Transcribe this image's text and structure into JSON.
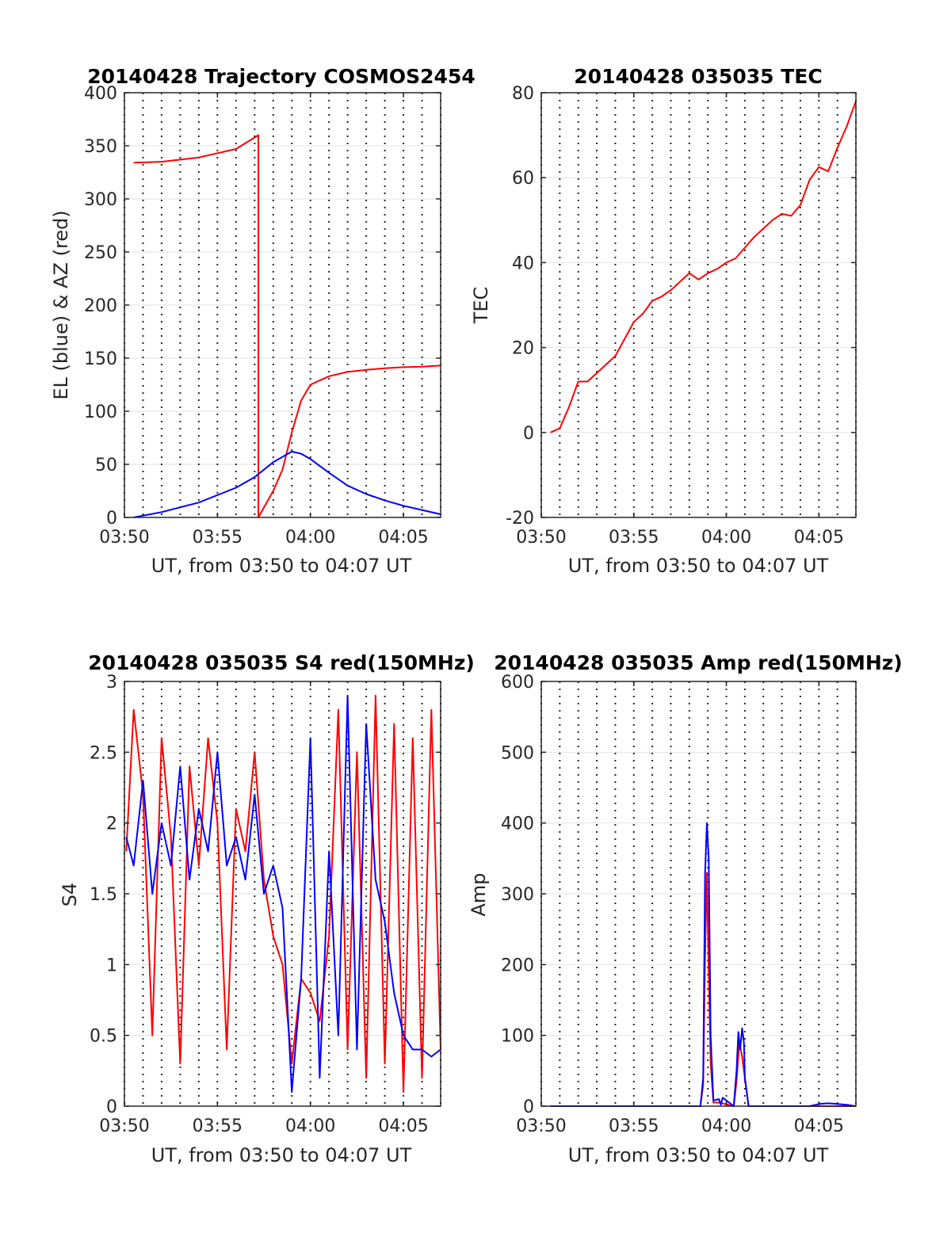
{
  "chart_data": [
    {
      "type": "line",
      "title": "20140428 Trajectory COSMOS2454",
      "xlabel": "UT, from 03:50 to 04:07 UT",
      "ylabel": "EL (blue) & AZ (red)",
      "xlim": [
        0,
        17
      ],
      "ylim": [
        0,
        400
      ],
      "xticks": [
        0,
        5,
        10,
        15
      ],
      "xtick_labels": [
        "03:50",
        "03:55",
        "04:00",
        "04:05"
      ],
      "yticks": [
        0,
        50,
        100,
        150,
        200,
        250,
        300,
        350,
        400
      ],
      "ytick_labels": [
        "0",
        "50",
        "100",
        "150",
        "200",
        "250",
        "300",
        "350",
        "400"
      ],
      "grid": true,
      "series": [
        {
          "color": "#ff0000",
          "x": [
            0.5,
            2,
            4,
            6,
            7.2,
            7.2,
            8,
            8.5,
            9,
            9.5,
            10,
            11,
            12,
            13,
            14,
            15,
            16,
            17
          ],
          "y": [
            334,
            335,
            339,
            347,
            360,
            0,
            25,
            45,
            80,
            110,
            125,
            133,
            137,
            139,
            140.5,
            141.5,
            142,
            143
          ]
        },
        {
          "color": "#0000ff",
          "x": [
            0.5,
            2,
            4,
            6,
            7,
            8,
            9,
            9.5,
            10,
            11,
            12,
            13,
            14,
            15,
            16,
            17
          ],
          "y": [
            0,
            5,
            14,
            28,
            38,
            52,
            62,
            60,
            55,
            42,
            30,
            22,
            16,
            11,
            7,
            3
          ]
        }
      ]
    },
    {
      "type": "line",
      "title": "20140428 035035 TEC",
      "xlabel": "UT, from 03:50 to 04:07 UT",
      "ylabel": "TEC",
      "xlim": [
        0,
        17
      ],
      "ylim": [
        -20,
        80
      ],
      "xticks": [
        0,
        5,
        10,
        15
      ],
      "xtick_labels": [
        "03:50",
        "03:55",
        "04:00",
        "04:05"
      ],
      "yticks": [
        -20,
        0,
        20,
        40,
        60,
        80
      ],
      "ytick_labels": [
        "-20",
        "0",
        "20",
        "40",
        "60",
        "80"
      ],
      "grid": true,
      "series": [
        {
          "color": "#ff0000",
          "x": [
            0.5,
            1,
            1.5,
            2,
            2.5,
            3,
            3.5,
            4,
            4.5,
            5,
            5.5,
            6,
            6.5,
            7,
            7.5,
            8,
            8.5,
            9,
            9.5,
            10,
            10.5,
            11,
            11.5,
            12,
            12.5,
            13,
            13.5,
            14,
            14.5,
            15,
            15.5,
            16,
            16.5,
            17
          ],
          "y": [
            0,
            1,
            6,
            12,
            12,
            14,
            16,
            18,
            22,
            26,
            28,
            31,
            32,
            33.5,
            35.5,
            37.5,
            36,
            37.5,
            38.5,
            40,
            41,
            43.5,
            46,
            48,
            50,
            51.5,
            51,
            53.5,
            59.5,
            62.5,
            61.5,
            67,
            72,
            78
          ]
        }
      ]
    },
    {
      "type": "line",
      "title": "20140428 035035 S4 red(150MHz)",
      "xlabel": "UT, from 03:50 to 04:07 UT",
      "ylabel": "S4",
      "xlim": [
        0,
        17
      ],
      "ylim": [
        0,
        3
      ],
      "xticks": [
        0,
        5,
        10,
        15
      ],
      "xtick_labels": [
        "03:50",
        "03:55",
        "04:00",
        "04:05"
      ],
      "yticks": [
        0,
        0.5,
        1,
        1.5,
        2,
        2.5,
        3
      ],
      "ytick_labels": [
        "0",
        "0.5",
        "1",
        "1.5",
        "2",
        "2.5",
        "3"
      ],
      "grid": true,
      "series": [
        {
          "color": "#ff0000",
          "x": [
            0.1,
            0.5,
            1,
            1.5,
            2,
            2.5,
            3,
            3.5,
            4,
            4.5,
            5,
            5.5,
            6,
            6.5,
            7,
            7.5,
            8,
            8.5,
            9,
            9.5,
            10,
            10.5,
            11,
            11.5,
            12,
            12.5,
            13,
            13.5,
            14,
            14.5,
            15,
            15.5,
            16,
            16.5,
            17
          ],
          "y": [
            1.8,
            2.8,
            2.2,
            0.5,
            2.6,
            1.9,
            0.3,
            2.4,
            1.7,
            2.6,
            2.0,
            0.4,
            2.1,
            1.8,
            2.5,
            1.6,
            1.2,
            1.0,
            0.3,
            0.9,
            0.8,
            0.6,
            1.2,
            2.8,
            0.4,
            2.5,
            0.2,
            2.9,
            0.3,
            2.7,
            0.1,
            2.6,
            0.2,
            2.8,
            0.4
          ]
        },
        {
          "color": "#0000ff",
          "x": [
            0.1,
            0.5,
            1,
            1.5,
            2,
            2.5,
            3,
            3.5,
            4,
            4.5,
            5,
            5.5,
            6,
            6.5,
            7,
            7.5,
            8,
            8.5,
            9,
            9.5,
            10,
            10.5,
            11,
            11.5,
            12,
            12.5,
            13,
            13.5,
            14,
            14.5,
            15,
            15.5,
            16,
            16.5,
            17
          ],
          "y": [
            1.9,
            1.7,
            2.3,
            1.5,
            2.0,
            1.7,
            2.4,
            1.6,
            2.1,
            1.8,
            2.5,
            1.7,
            1.9,
            1.6,
            2.2,
            1.5,
            1.7,
            1.4,
            0.1,
            0.9,
            2.6,
            0.2,
            1.8,
            0.5,
            2.9,
            0.4,
            2.7,
            1.6,
            1.3,
            0.8,
            0.5,
            0.4,
            0.4,
            0.35,
            0.4
          ]
        }
      ]
    },
    {
      "type": "line",
      "title": "20140428 035035 Amp red(150MHz)",
      "xlabel": "UT, from 03:50 to 04:07 UT",
      "ylabel": "Amp",
      "xlim": [
        0,
        17
      ],
      "ylim": [
        0,
        600
      ],
      "xticks": [
        0,
        5,
        10,
        15
      ],
      "xtick_labels": [
        "03:50",
        "03:55",
        "04:00",
        "04:05"
      ],
      "yticks": [
        0,
        100,
        200,
        300,
        400,
        500,
        600
      ],
      "ytick_labels": [
        "0",
        "100",
        "200",
        "300",
        "400",
        "500",
        "600"
      ],
      "grid": true,
      "series": [
        {
          "color": "#ff0000",
          "x": [
            0.5,
            8.6,
            8.75,
            8.85,
            8.95,
            9.05,
            9.15,
            9.3,
            9.6,
            10.4,
            10.55,
            10.7,
            10.85,
            11.0,
            11.2,
            17
          ],
          "y": [
            0,
            0,
            30,
            210,
            330,
            190,
            60,
            5,
            5,
            0,
            35,
            90,
            70,
            40,
            0,
            0
          ]
        },
        {
          "color": "#0000ff",
          "x": [
            0.5,
            8.6,
            8.75,
            8.85,
            8.95,
            9.05,
            9.15,
            9.3,
            9.6,
            9.7,
            9.8,
            10.4,
            10.55,
            10.65,
            10.75,
            10.85,
            10.95,
            11.0,
            11.2,
            14.5,
            15.0,
            15.5,
            16.0,
            16.5,
            17
          ],
          "y": [
            0,
            0,
            40,
            330,
            400,
            350,
            100,
            8,
            10,
            2,
            12,
            0,
            50,
            105,
            80,
            110,
            90,
            40,
            0,
            0,
            3,
            4,
            3,
            2,
            0
          ]
        }
      ]
    }
  ]
}
